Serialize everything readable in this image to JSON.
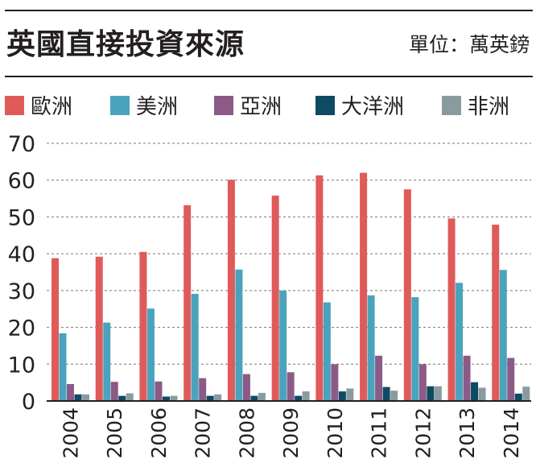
{
  "title": "英國直接投資來源",
  "unit": "單位：萬英鎊",
  "colors": {
    "歐洲": "#e05a5a",
    "美洲": "#4aa3bd",
    "亞洲": "#8c5a87",
    "大洋洲": "#0f4a63",
    "非洲": "#8a9ba0"
  },
  "chart_data": {
    "type": "bar",
    "title": "英國直接投資來源",
    "ylabel": "",
    "xlabel": "",
    "ylim": [
      0,
      70
    ],
    "yticks": [
      0,
      10,
      20,
      30,
      40,
      50,
      60,
      70
    ],
    "grid": true,
    "legend_position": "top",
    "categories": [
      "2004",
      "2005",
      "2006",
      "2007",
      "2008",
      "2009",
      "2010",
      "2011",
      "2012",
      "2013",
      "2014"
    ],
    "series": [
      {
        "name": "歐洲",
        "color": "#e05a5a",
        "values": [
          38.8,
          39.2,
          40.5,
          53.2,
          60.1,
          55.8,
          61.3,
          62.0,
          57.5,
          49.6,
          47.9
        ]
      },
      {
        "name": "美洲",
        "color": "#4aa3bd",
        "values": [
          18.4,
          21.3,
          25.1,
          29.1,
          35.7,
          30.0,
          26.8,
          28.7,
          28.2,
          32.1,
          35.6
        ]
      },
      {
        "name": "亞洲",
        "color": "#8c5a87",
        "values": [
          4.6,
          5.2,
          5.3,
          6.2,
          7.3,
          7.8,
          10.0,
          12.3,
          10.0,
          12.3,
          11.7
        ]
      },
      {
        "name": "大洋洲",
        "color": "#0f4a63",
        "values": [
          1.8,
          1.4,
          1.2,
          1.4,
          1.4,
          1.4,
          2.6,
          3.8,
          4.0,
          5.1,
          2.0
        ]
      },
      {
        "name": "非洲",
        "color": "#8a9ba0",
        "values": [
          1.8,
          2.1,
          1.4,
          1.8,
          2.2,
          2.6,
          3.4,
          2.8,
          4.0,
          3.6,
          3.9
        ]
      }
    ]
  }
}
